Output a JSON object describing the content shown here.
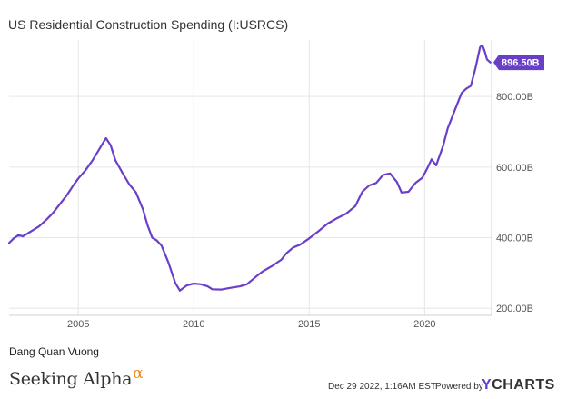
{
  "header": {
    "title": "US Residential Construction Spending (I:USRCS)"
  },
  "footer": {
    "author": "Dang Quan Vuong",
    "brand_left": "Seeking Alpha",
    "brand_left_alpha": "α",
    "date": "Dec 29 2022, 1:16AM EST.",
    "powered_by": "Powered by",
    "brand_right_y": "Y",
    "brand_right_rest": "CHARTS"
  },
  "colors": {
    "series": "#6a3fc8",
    "grid": "#e6e6e6",
    "label_text": "#ffffff"
  },
  "chart_data": {
    "type": "line",
    "title": "US Residential Construction Spending (I:USRCS)",
    "xlabel": "",
    "ylabel": "",
    "xlim": [
      2002.0,
      2022.9
    ],
    "ylim": [
      180,
      960
    ],
    "x_ticks": [
      2005,
      2010,
      2015,
      2020
    ],
    "x_tick_labels": [
      "2005",
      "2010",
      "2015",
      "2020"
    ],
    "y_ticks": [
      200,
      400,
      600,
      800
    ],
    "y_tick_labels": [
      "200.00B",
      "400.00B",
      "600.00B",
      "800.00B"
    ],
    "grid": "vertical and horizontal",
    "last_value_label": "896.50B",
    "series": [
      {
        "values": [
          [
            2002.0,
            385
          ],
          [
            2002.2,
            398
          ],
          [
            2002.4,
            407
          ],
          [
            2002.6,
            404
          ],
          [
            2002.8,
            412
          ],
          [
            2003.0,
            420
          ],
          [
            2003.3,
            432
          ],
          [
            2003.6,
            450
          ],
          [
            2003.9,
            470
          ],
          [
            2004.2,
            495
          ],
          [
            2004.5,
            520
          ],
          [
            2004.8,
            550
          ],
          [
            2005.0,
            568
          ],
          [
            2005.3,
            590
          ],
          [
            2005.6,
            618
          ],
          [
            2005.9,
            650
          ],
          [
            2006.1,
            672
          ],
          [
            2006.2,
            682
          ],
          [
            2006.4,
            662
          ],
          [
            2006.6,
            620
          ],
          [
            2006.9,
            585
          ],
          [
            2007.2,
            552
          ],
          [
            2007.5,
            528
          ],
          [
            2007.8,
            480
          ],
          [
            2008.0,
            435
          ],
          [
            2008.2,
            400
          ],
          [
            2008.4,
            392
          ],
          [
            2008.6,
            378
          ],
          [
            2008.9,
            330
          ],
          [
            2009.2,
            272
          ],
          [
            2009.4,
            250
          ],
          [
            2009.7,
            265
          ],
          [
            2010.0,
            270
          ],
          [
            2010.3,
            268
          ],
          [
            2010.6,
            262
          ],
          [
            2010.8,
            254
          ],
          [
            2011.2,
            253
          ],
          [
            2011.6,
            258
          ],
          [
            2012.0,
            262
          ],
          [
            2012.3,
            268
          ],
          [
            2012.7,
            290
          ],
          [
            2013.0,
            305
          ],
          [
            2013.4,
            320
          ],
          [
            2013.8,
            338
          ],
          [
            2014.0,
            355
          ],
          [
            2014.3,
            372
          ],
          [
            2014.6,
            380
          ],
          [
            2015.0,
            398
          ],
          [
            2015.4,
            418
          ],
          [
            2015.8,
            440
          ],
          [
            2016.2,
            455
          ],
          [
            2016.6,
            468
          ],
          [
            2017.0,
            490
          ],
          [
            2017.3,
            530
          ],
          [
            2017.6,
            548
          ],
          [
            2017.9,
            555
          ],
          [
            2018.2,
            578
          ],
          [
            2018.5,
            582
          ],
          [
            2018.8,
            558
          ],
          [
            2019.0,
            528
          ],
          [
            2019.3,
            530
          ],
          [
            2019.6,
            555
          ],
          [
            2019.9,
            570
          ],
          [
            2020.1,
            595
          ],
          [
            2020.3,
            622
          ],
          [
            2020.5,
            605
          ],
          [
            2020.8,
            660
          ],
          [
            2021.0,
            710
          ],
          [
            2021.3,
            760
          ],
          [
            2021.6,
            810
          ],
          [
            2021.8,
            822
          ],
          [
            2022.0,
            830
          ],
          [
            2022.2,
            880
          ],
          [
            2022.4,
            940
          ],
          [
            2022.5,
            945
          ],
          [
            2022.6,
            928
          ],
          [
            2022.7,
            905
          ],
          [
            2022.85,
            896.5
          ]
        ]
      }
    ]
  }
}
